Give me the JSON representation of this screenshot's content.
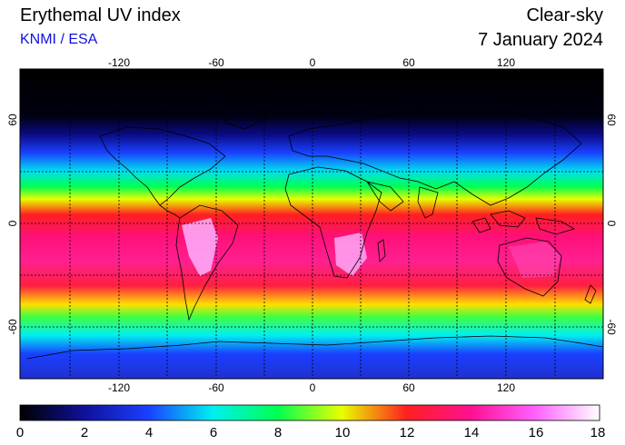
{
  "header": {
    "title": "Erythemal UV index",
    "source": "KNMI / ESA",
    "sky": "Clear-sky",
    "date": "7 January 2024"
  },
  "map": {
    "lon_ticks_top": [
      "-120",
      "-60",
      "0",
      "60",
      "120"
    ],
    "lon_ticks_bottom": [
      "-120",
      "-60",
      "0",
      "60",
      "120"
    ],
    "lat_ticks_left": [
      "60",
      "0",
      "-60"
    ],
    "lat_ticks_right": [
      "60",
      "0",
      "-60"
    ],
    "colors": {
      "band_0": "#000000",
      "band_2": "#0a0a9a",
      "band_4": "#1a40ff",
      "band_6": "#00f0f0",
      "band_8": "#00ff50",
      "band_10": "#e8ff00",
      "band_12": "#ff2020",
      "band_14": "#ff1090",
      "band_16": "#ff60ff",
      "band_18": "#ffffff"
    }
  },
  "colorbar": {
    "ticks": [
      "0",
      "2",
      "4",
      "6",
      "8",
      "10",
      "12",
      "14",
      "16",
      "18"
    ]
  }
}
